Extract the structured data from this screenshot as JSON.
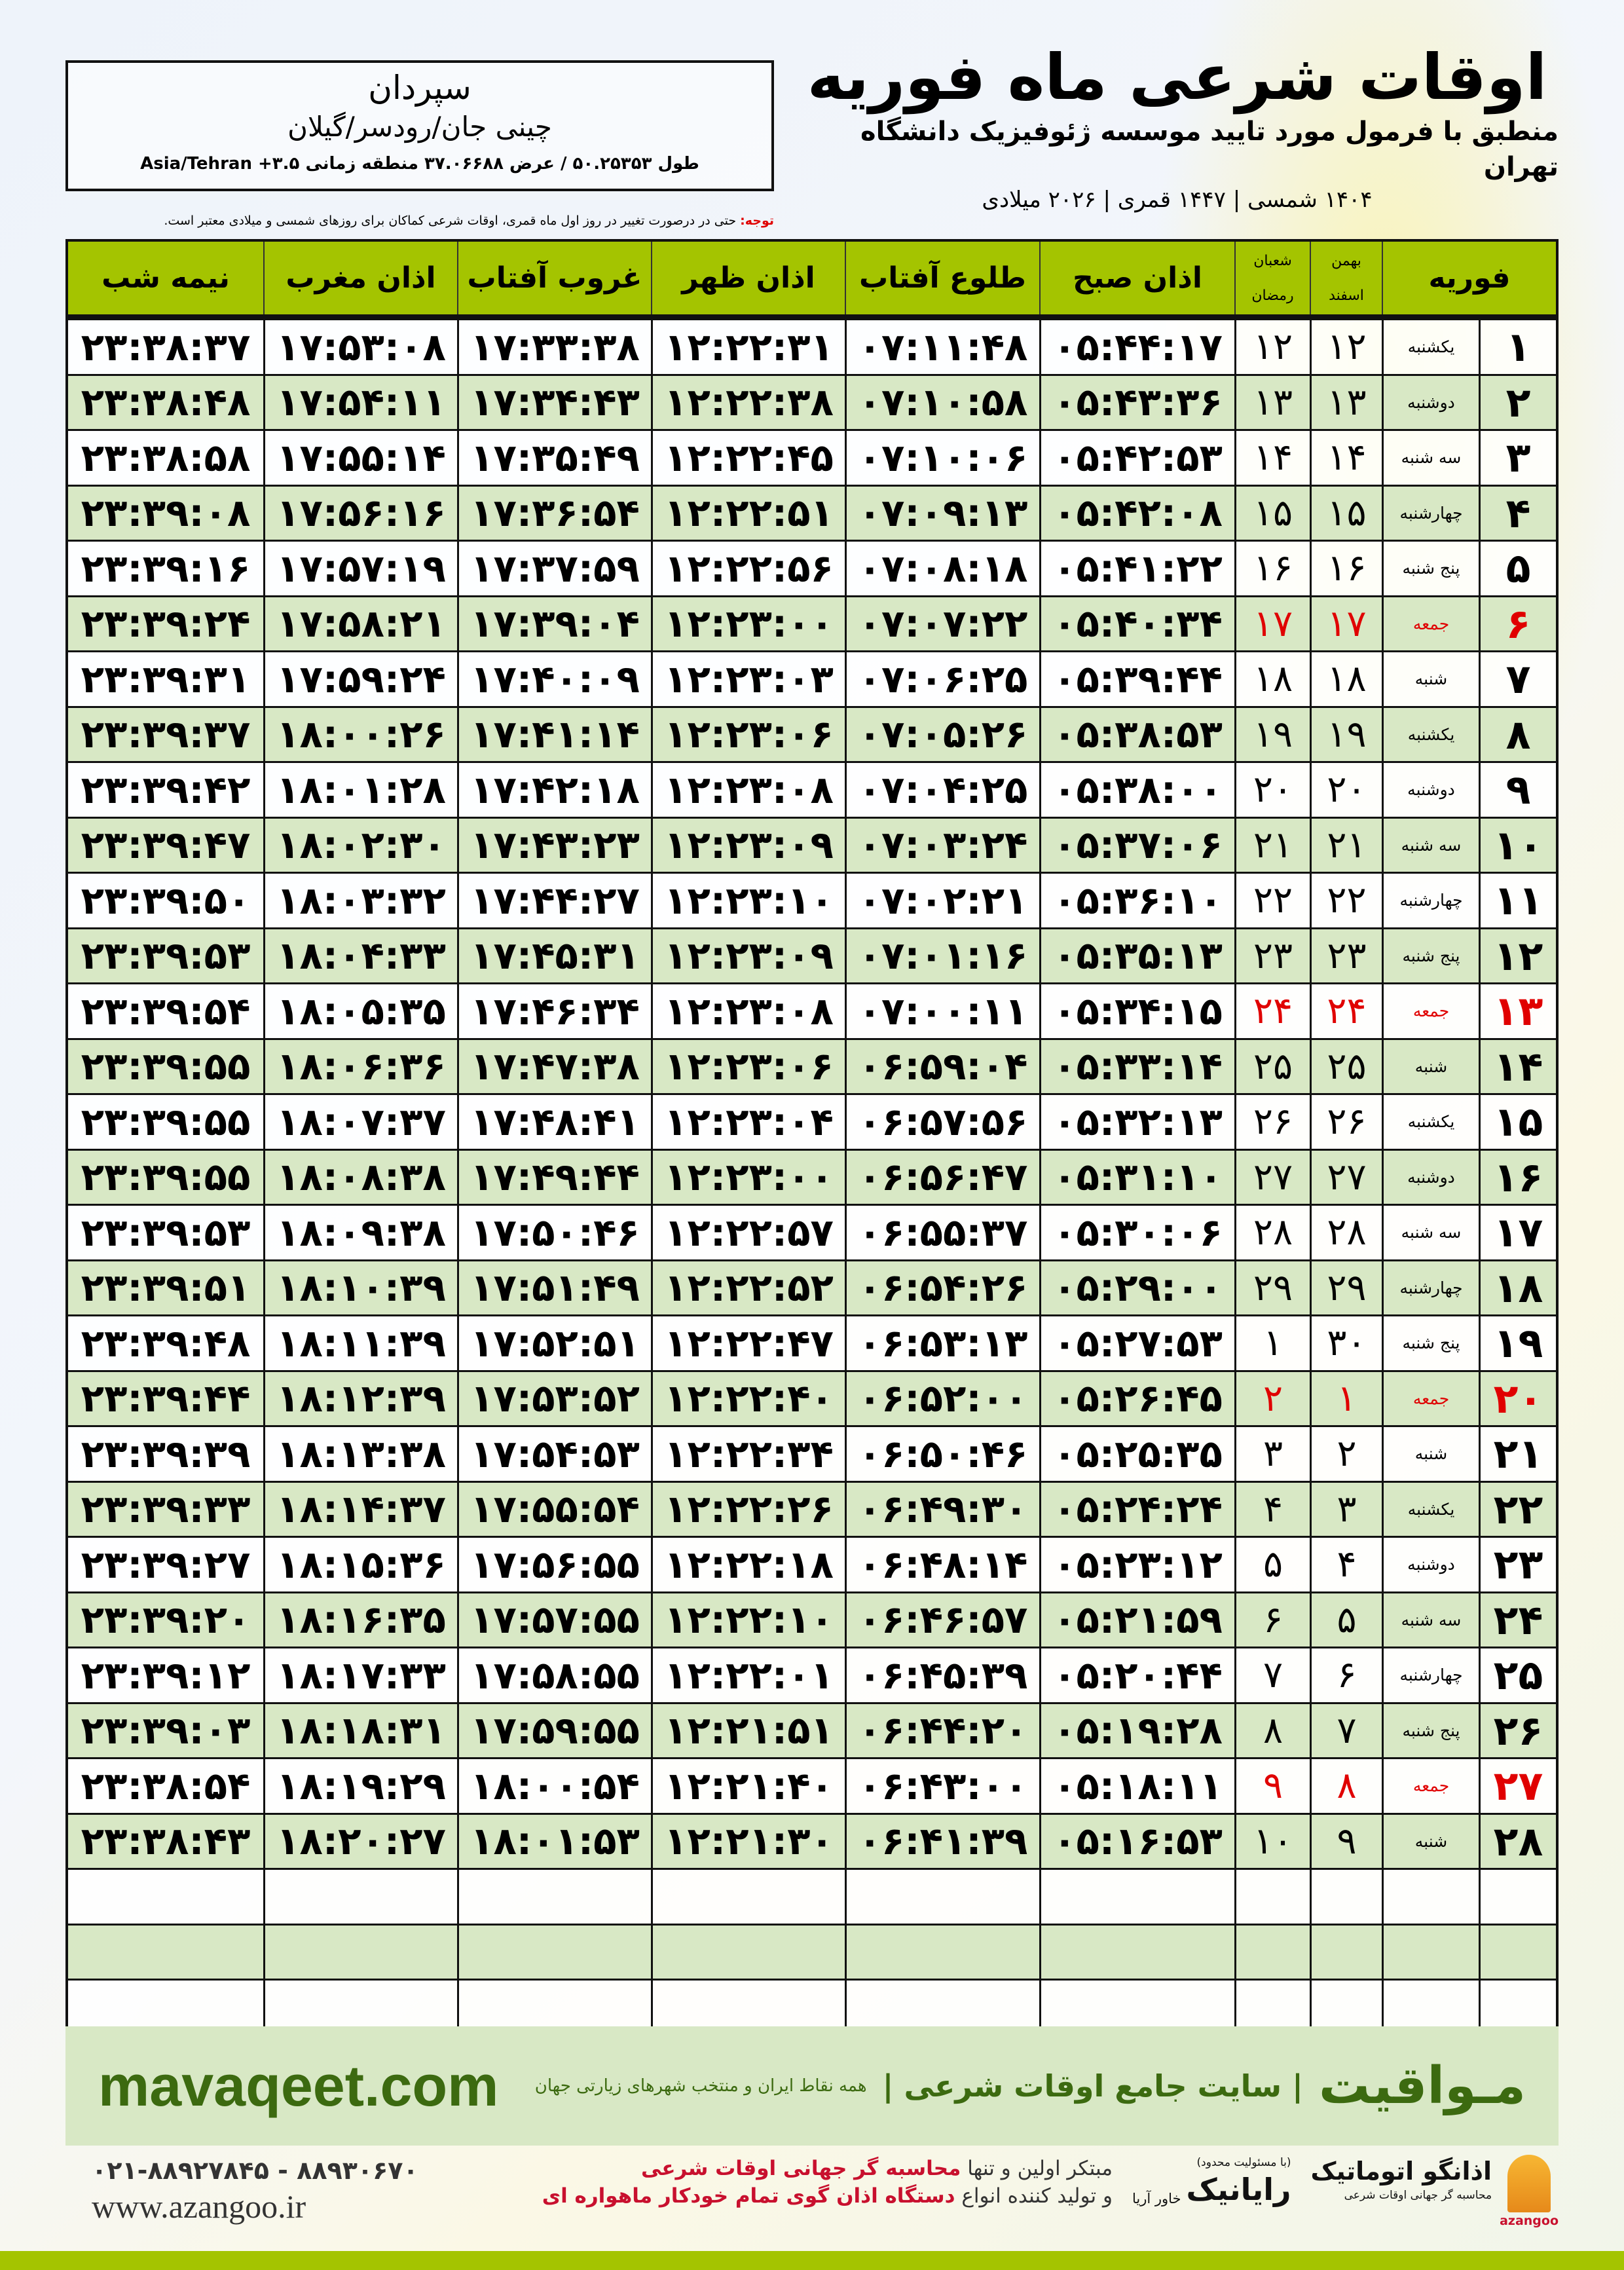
{
  "header": {
    "title": "اوقات شرعی ماه فوریه",
    "subtitle": "منطبق با فرمول مورد تایید موسسه ژئوفیزیک دانشگاه تهران",
    "years": "۱۴۰۴ شمسی | ۱۴۴۷ قمری | ۲۰۲۶ میلادی"
  },
  "location": {
    "city": "سپردان",
    "region": "چینی جان/رودسر/گیلان",
    "coords": "طول ۵۰.۲۵۳۵۳ / عرض ۳۷.۰۶۶۸۸ منطقه زمانی ۳.۵+ Asia/Tehran"
  },
  "note": {
    "label": "توجه:",
    "text": " حتی در درصورت تغییر در روز اول ماه قمری، اوقات شرعی کماکان برای روزهای شمسی و میلادی معتبر است."
  },
  "colors": {
    "header_green": "#a4c400",
    "row_green": "#d8e8c5",
    "friday_red": "#e00000",
    "brand_green": "#3c6a10"
  },
  "columns": {
    "midnight": "نیمه شب",
    "maghrib": "اذان مغرب",
    "sunset": "غروب آفتاب",
    "dhuhr": "اذان ظهر",
    "sunrise": "طلوع آفتاب",
    "fajr": "اذان صبح",
    "hijri_top": "شعبان",
    "hijri_bottom": "رمضان",
    "shamsi_top": "بهمن",
    "shamsi_bottom": "اسفند",
    "month": "فوریه"
  },
  "rows": [
    [
      "۱",
      "یکشنبه",
      "۱۲",
      "۱۲",
      "۰۵:۴۴:۱۷",
      "۰۷:۱۱:۴۸",
      "۱۲:۲۲:۳۱",
      "۱۷:۳۳:۳۸",
      "۱۷:۵۳:۰۸",
      "۲۳:۳۸:۳۷"
    ],
    [
      "۲",
      "دوشنبه",
      "۱۳",
      "۱۳",
      "۰۵:۴۳:۳۶",
      "۰۷:۱۰:۵۸",
      "۱۲:۲۲:۳۸",
      "۱۷:۳۴:۴۳",
      "۱۷:۵۴:۱۱",
      "۲۳:۳۸:۴۸"
    ],
    [
      "۳",
      "سه شنبه",
      "۱۴",
      "۱۴",
      "۰۵:۴۲:۵۳",
      "۰۷:۱۰:۰۶",
      "۱۲:۲۲:۴۵",
      "۱۷:۳۵:۴۹",
      "۱۷:۵۵:۱۴",
      "۲۳:۳۸:۵۸"
    ],
    [
      "۴",
      "چهارشنبه",
      "۱۵",
      "۱۵",
      "۰۵:۴۲:۰۸",
      "۰۷:۰۹:۱۳",
      "۱۲:۲۲:۵۱",
      "۱۷:۳۶:۵۴",
      "۱۷:۵۶:۱۶",
      "۲۳:۳۹:۰۸"
    ],
    [
      "۵",
      "پنج شنبه",
      "۱۶",
      "۱۶",
      "۰۵:۴۱:۲۲",
      "۰۷:۰۸:۱۸",
      "۱۲:۲۲:۵۶",
      "۱۷:۳۷:۵۹",
      "۱۷:۵۷:۱۹",
      "۲۳:۳۹:۱۶"
    ],
    [
      "۶",
      "جمعه",
      "۱۷",
      "۱۷",
      "۰۵:۴۰:۳۴",
      "۰۷:۰۷:۲۲",
      "۱۲:۲۳:۰۰",
      "۱۷:۳۹:۰۴",
      "۱۷:۵۸:۲۱",
      "۲۳:۳۹:۲۴"
    ],
    [
      "۷",
      "شنبه",
      "۱۸",
      "۱۸",
      "۰۵:۳۹:۴۴",
      "۰۷:۰۶:۲۵",
      "۱۲:۲۳:۰۳",
      "۱۷:۴۰:۰۹",
      "۱۷:۵۹:۲۴",
      "۲۳:۳۹:۳۱"
    ],
    [
      "۸",
      "یکشنبه",
      "۱۹",
      "۱۹",
      "۰۵:۳۸:۵۳",
      "۰۷:۰۵:۲۶",
      "۱۲:۲۳:۰۶",
      "۱۷:۴۱:۱۴",
      "۱۸:۰۰:۲۶",
      "۲۳:۳۹:۳۷"
    ],
    [
      "۹",
      "دوشنبه",
      "۲۰",
      "۲۰",
      "۰۵:۳۸:۰۰",
      "۰۷:۰۴:۲۵",
      "۱۲:۲۳:۰۸",
      "۱۷:۴۲:۱۸",
      "۱۸:۰۱:۲۸",
      "۲۳:۳۹:۴۲"
    ],
    [
      "۱۰",
      "سه شنبه",
      "۲۱",
      "۲۱",
      "۰۵:۳۷:۰۶",
      "۰۷:۰۳:۲۴",
      "۱۲:۲۳:۰۹",
      "۱۷:۴۳:۲۳",
      "۱۸:۰۲:۳۰",
      "۲۳:۳۹:۴۷"
    ],
    [
      "۱۱",
      "چهارشنبه",
      "۲۲",
      "۲۲",
      "۰۵:۳۶:۱۰",
      "۰۷:۰۲:۲۱",
      "۱۲:۲۳:۱۰",
      "۱۷:۴۴:۲۷",
      "۱۸:۰۳:۳۲",
      "۲۳:۳۹:۵۰"
    ],
    [
      "۱۲",
      "پنج شنبه",
      "۲۳",
      "۲۳",
      "۰۵:۳۵:۱۳",
      "۰۷:۰۱:۱۶",
      "۱۲:۲۳:۰۹",
      "۱۷:۴۵:۳۱",
      "۱۸:۰۴:۳۳",
      "۲۳:۳۹:۵۳"
    ],
    [
      "۱۳",
      "جمعه",
      "۲۴",
      "۲۴",
      "۰۵:۳۴:۱۵",
      "۰۷:۰۰:۱۱",
      "۱۲:۲۳:۰۸",
      "۱۷:۴۶:۳۴",
      "۱۸:۰۵:۳۵",
      "۲۳:۳۹:۵۴"
    ],
    [
      "۱۴",
      "شنبه",
      "۲۵",
      "۲۵",
      "۰۵:۳۳:۱۴",
      "۰۶:۵۹:۰۴",
      "۱۲:۲۳:۰۶",
      "۱۷:۴۷:۳۸",
      "۱۸:۰۶:۳۶",
      "۲۳:۳۹:۵۵"
    ],
    [
      "۱۵",
      "یکشنبه",
      "۲۶",
      "۲۶",
      "۰۵:۳۲:۱۳",
      "۰۶:۵۷:۵۶",
      "۱۲:۲۳:۰۴",
      "۱۷:۴۸:۴۱",
      "۱۸:۰۷:۳۷",
      "۲۳:۳۹:۵۵"
    ],
    [
      "۱۶",
      "دوشنبه",
      "۲۷",
      "۲۷",
      "۰۵:۳۱:۱۰",
      "۰۶:۵۶:۴۷",
      "۱۲:۲۳:۰۰",
      "۱۷:۴۹:۴۴",
      "۱۸:۰۸:۳۸",
      "۲۳:۳۹:۵۵"
    ],
    [
      "۱۷",
      "سه شنبه",
      "۲۸",
      "۲۸",
      "۰۵:۳۰:۰۶",
      "۰۶:۵۵:۳۷",
      "۱۲:۲۲:۵۷",
      "۱۷:۵۰:۴۶",
      "۱۸:۰۹:۳۸",
      "۲۳:۳۹:۵۳"
    ],
    [
      "۱۸",
      "چهارشنبه",
      "۲۹",
      "۲۹",
      "۰۵:۲۹:۰۰",
      "۰۶:۵۴:۲۶",
      "۱۲:۲۲:۵۲",
      "۱۷:۵۱:۴۹",
      "۱۸:۱۰:۳۹",
      "۲۳:۳۹:۵۱"
    ],
    [
      "۱۹",
      "پنج شنبه",
      "۳۰",
      "۱",
      "۰۵:۲۷:۵۳",
      "۰۶:۵۳:۱۳",
      "۱۲:۲۲:۴۷",
      "۱۷:۵۲:۵۱",
      "۱۸:۱۱:۳۹",
      "۲۳:۳۹:۴۸"
    ],
    [
      "۲۰",
      "جمعه",
      "۱",
      "۲",
      "۰۵:۲۶:۴۵",
      "۰۶:۵۲:۰۰",
      "۱۲:۲۲:۴۰",
      "۱۷:۵۳:۵۲",
      "۱۸:۱۲:۳۹",
      "۲۳:۳۹:۴۴"
    ],
    [
      "۲۱",
      "شنبه",
      "۲",
      "۳",
      "۰۵:۲۵:۳۵",
      "۰۶:۵۰:۴۶",
      "۱۲:۲۲:۳۴",
      "۱۷:۵۴:۵۳",
      "۱۸:۱۳:۳۸",
      "۲۳:۳۹:۳۹"
    ],
    [
      "۲۲",
      "یکشنبه",
      "۳",
      "۴",
      "۰۵:۲۴:۲۴",
      "۰۶:۴۹:۳۰",
      "۱۲:۲۲:۲۶",
      "۱۷:۵۵:۵۴",
      "۱۸:۱۴:۳۷",
      "۲۳:۳۹:۳۳"
    ],
    [
      "۲۳",
      "دوشنبه",
      "۴",
      "۵",
      "۰۵:۲۳:۱۲",
      "۰۶:۴۸:۱۴",
      "۱۲:۲۲:۱۸",
      "۱۷:۵۶:۵۵",
      "۱۸:۱۵:۳۶",
      "۲۳:۳۹:۲۷"
    ],
    [
      "۲۴",
      "سه شنبه",
      "۵",
      "۶",
      "۰۵:۲۱:۵۹",
      "۰۶:۴۶:۵۷",
      "۱۲:۲۲:۱۰",
      "۱۷:۵۷:۵۵",
      "۱۸:۱۶:۳۵",
      "۲۳:۳۹:۲۰"
    ],
    [
      "۲۵",
      "چهارشنبه",
      "۶",
      "۷",
      "۰۵:۲۰:۴۴",
      "۰۶:۴۵:۳۹",
      "۱۲:۲۲:۰۱",
      "۱۷:۵۸:۵۵",
      "۱۸:۱۷:۳۳",
      "۲۳:۳۹:۱۲"
    ],
    [
      "۲۶",
      "پنج شنبه",
      "۷",
      "۸",
      "۰۵:۱۹:۲۸",
      "۰۶:۴۴:۲۰",
      "۱۲:۲۱:۵۱",
      "۱۷:۵۹:۵۵",
      "۱۸:۱۸:۳۱",
      "۲۳:۳۹:۰۳"
    ],
    [
      "۲۷",
      "جمعه",
      "۸",
      "۹",
      "۰۵:۱۸:۱۱",
      "۰۶:۴۳:۰۰",
      "۱۲:۲۱:۴۰",
      "۱۸:۰۰:۵۴",
      "۱۸:۱۹:۲۹",
      "۲۳:۳۸:۵۴"
    ],
    [
      "۲۸",
      "شنبه",
      "۹",
      "۱۰",
      "۰۵:۱۶:۵۳",
      "۰۶:۴۱:۳۹",
      "۱۲:۲۱:۳۰",
      "۱۸:۰۱:۵۳",
      "۱۸:۲۰:۲۷",
      "۲۳:۳۸:۴۳"
    ]
  ],
  "friday_label": "جمعه",
  "footer": {
    "site": "mavaqeet.com",
    "brand": "مـواقیت",
    "slogan": "| سایت جامع اوقات شرعی |",
    "slogan2": "همه نقاط ایران و منتخب شهرهای زیارتی جهان",
    "phone": "۰۲۱-۸۸۹۲۷۸۴۵ - ۸۸۹۳۰۶۷۰",
    "web": "www.azangoo.ir",
    "promo1a": "مبتکر اولین و تنها ",
    "promo1b": "محاسبه گر جهانی اوقات شرعی",
    "promo2a": "و تولید کننده انواع ",
    "promo2b": "دستگاه اذان گوی تمام خودکار ماهواره ای",
    "logo1": "رایانیک",
    "logo1_sub": "(با مسئولیت محدود)",
    "logo1_side": "خاور آریا",
    "logo2": "اذانگو اتوماتیک",
    "logo2_sub": "محاسبه گر جهانی اوقات شرعی",
    "logo2_latin": "azangoo"
  }
}
